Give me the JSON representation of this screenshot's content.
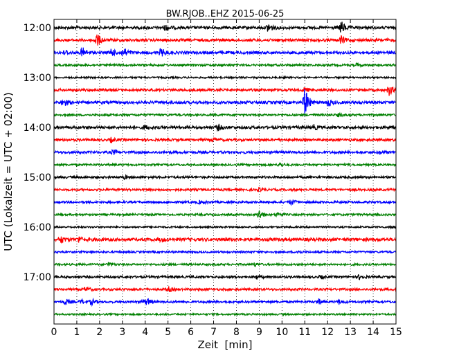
{
  "chart_data": {
    "type": "line",
    "title": "BW.RJOB..EHZ 2015-06-25",
    "xlabel": "Zeit  [min]",
    "ylabel": "UTC (Lokalzeit = UTC + 02:00)",
    "xlim": [
      0,
      15
    ],
    "x_ticks": [
      "0",
      "1",
      "2",
      "3",
      "4",
      "5",
      "6",
      "7",
      "8",
      "9",
      "10",
      "11",
      "12",
      "13",
      "14",
      "15"
    ],
    "y_ticks": [
      "12:00",
      "13:00",
      "14:00",
      "15:00",
      "16:00",
      "17:00"
    ],
    "grid": "vertical dotted",
    "trace_colors": [
      "#000000",
      "#ff0000",
      "#0000ff",
      "#008000"
    ],
    "traces": [
      {
        "start": "12:00",
        "amplitude": 2.0,
        "events": [
          {
            "t": 9.4,
            "amp": 7
          },
          {
            "t": 12.6,
            "amp": 9
          },
          {
            "t": 4.9,
            "amp": 4
          }
        ]
      },
      {
        "start": "12:15",
        "amplitude": 2.0,
        "events": [
          {
            "t": 1.9,
            "amp": 5
          },
          {
            "t": 1.85,
            "amp": 5
          },
          {
            "t": 12.6,
            "amp": 5
          }
        ]
      },
      {
        "start": "12:30",
        "amplitude": 2.0,
        "events": [
          {
            "t": 1.25,
            "amp": 7
          },
          {
            "t": 2.5,
            "amp": 6
          },
          {
            "t": 3.05,
            "amp": 7
          },
          {
            "t": 4.7,
            "amp": 6
          },
          {
            "t": 0.5,
            "amp": 3
          }
        ]
      },
      {
        "start": "12:45",
        "amplitude": 1.5,
        "events": [
          {
            "t": 13.3,
            "amp": 2
          }
        ]
      },
      {
        "start": "13:00",
        "amplitude": 1.2,
        "events": []
      },
      {
        "start": "13:15",
        "amplitude": 1.8,
        "events": [
          {
            "t": 14.7,
            "amp": 7
          },
          {
            "t": 11.0,
            "amp": 3
          }
        ]
      },
      {
        "start": "13:30",
        "amplitude": 2.0,
        "events": [
          {
            "t": 0.4,
            "amp": 6
          },
          {
            "t": 11.0,
            "amp": 22
          },
          {
            "t": 12.0,
            "amp": 5
          }
        ]
      },
      {
        "start": "13:45",
        "amplitude": 1.5,
        "events": [
          {
            "t": 12.5,
            "amp": 2
          }
        ]
      },
      {
        "start": "14:00",
        "amplitude": 2.0,
        "events": [
          {
            "t": 7.2,
            "amp": 4
          },
          {
            "t": 4.0,
            "amp": 3
          },
          {
            "t": 11.4,
            "amp": 3
          }
        ]
      },
      {
        "start": "14:15",
        "amplitude": 1.8,
        "events": [
          {
            "t": 2.5,
            "amp": 3
          },
          {
            "t": 7.0,
            "amp": 2
          }
        ]
      },
      {
        "start": "14:30",
        "amplitude": 1.8,
        "events": [
          {
            "t": 2.6,
            "amp": 3
          },
          {
            "t": 14.3,
            "amp": 2
          }
        ]
      },
      {
        "start": "14:45",
        "amplitude": 1.4,
        "events": [
          {
            "t": 9.9,
            "amp": 3
          }
        ]
      },
      {
        "start": "15:00",
        "amplitude": 1.6,
        "events": [
          {
            "t": 3.1,
            "amp": 2
          }
        ]
      },
      {
        "start": "15:15",
        "amplitude": 1.6,
        "events": [
          {
            "t": 9.0,
            "amp": 2
          }
        ]
      },
      {
        "start": "15:30",
        "amplitude": 1.6,
        "events": [
          {
            "t": 10.4,
            "amp": 4
          },
          {
            "t": 6.4,
            "amp": 2
          }
        ]
      },
      {
        "start": "15:45",
        "amplitude": 1.4,
        "events": [
          {
            "t": 9.0,
            "amp": 7
          },
          {
            "t": 9.8,
            "amp": 3
          }
        ]
      },
      {
        "start": "16:00",
        "amplitude": 1.2,
        "events": [
          {
            "t": 14.8,
            "amp": 2
          }
        ]
      },
      {
        "start": "16:15",
        "amplitude": 2.2,
        "events": [
          {
            "t": 0.3,
            "amp": 5
          },
          {
            "t": 1.1,
            "amp": 4
          },
          {
            "t": 4.7,
            "amp": 2
          }
        ]
      },
      {
        "start": "16:30",
        "amplitude": 1.4,
        "events": [
          {
            "t": 10.7,
            "amp": 2
          }
        ]
      },
      {
        "start": "16:45",
        "amplitude": 1.4,
        "events": [
          {
            "t": 2.4,
            "amp": 3
          },
          {
            "t": 8.8,
            "amp": 2
          }
        ]
      },
      {
        "start": "17:00",
        "amplitude": 1.6,
        "events": [
          {
            "t": 8.9,
            "amp": 3
          },
          {
            "t": 13.4,
            "amp": 3
          },
          {
            "t": 11.7,
            "amp": 2
          }
        ]
      },
      {
        "start": "17:15",
        "amplitude": 1.6,
        "events": [
          {
            "t": 1.4,
            "amp": 3
          },
          {
            "t": 5.0,
            "amp": 4
          }
        ]
      },
      {
        "start": "17:30",
        "amplitude": 1.6,
        "events": [
          {
            "t": 0.5,
            "amp": 4
          },
          {
            "t": 1.2,
            "amp": 3
          },
          {
            "t": 1.65,
            "amp": 4
          },
          {
            "t": 3.9,
            "amp": 3
          },
          {
            "t": 4.1,
            "amp": 4
          },
          {
            "t": 11.6,
            "amp": 4
          },
          {
            "t": 12.5,
            "amp": 3
          }
        ]
      },
      {
        "start": "17:45",
        "amplitude": 1.2,
        "events": []
      }
    ]
  }
}
